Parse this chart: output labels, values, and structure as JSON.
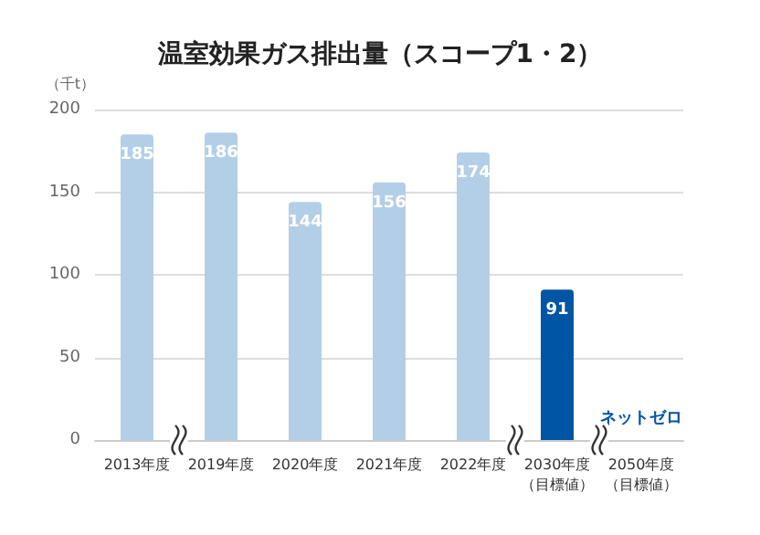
{
  "chart_data": {
    "type": "bar",
    "title": "温室効果ガス排出量（スコープ1・2）",
    "ylabel": "（千t）",
    "categories": [
      "2013年度",
      "2019年度",
      "2020年度",
      "2021年度",
      "2022年度",
      "2030年度（目標値）",
      "2050年度（目標値）"
    ],
    "values": [
      185,
      186,
      144,
      156,
      174,
      91,
      0
    ],
    "colors": [
      "#b3cfe8",
      "#b3cfe8",
      "#b3cfe8",
      "#b3cfe8",
      "#b3cfe8",
      "#0055a5",
      "#0055a5"
    ],
    "value_labels": [
      "185",
      "186",
      "144",
      "156",
      "174",
      "91",
      "ネットゼロ"
    ],
    "ylim": [
      0,
      200
    ],
    "yticks": [
      0,
      50,
      100,
      150,
      200
    ],
    "grid": "y"
  }
}
